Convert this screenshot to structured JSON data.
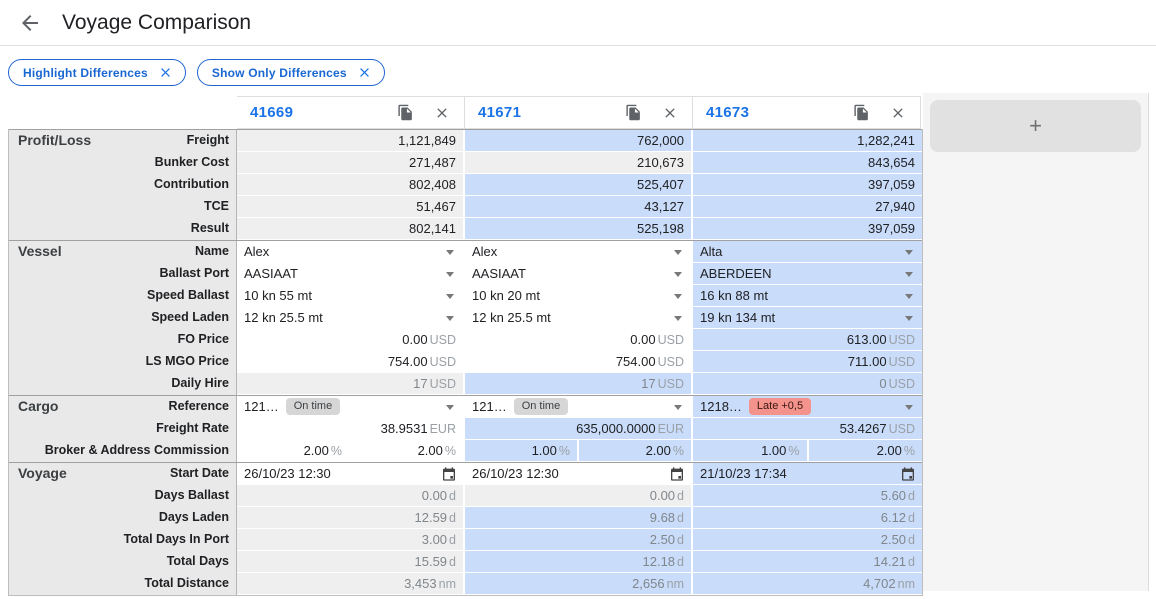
{
  "header": {
    "title": "Voyage Comparison"
  },
  "filters": [
    {
      "label": "Highlight Differences"
    },
    {
      "label": "Show Only Differences"
    }
  ],
  "columns": [
    {
      "id": "41669"
    },
    {
      "id": "41671"
    },
    {
      "id": "41673"
    }
  ],
  "add_column_label": "+",
  "colors": {
    "accent": "#1a73e8",
    "diff_highlight": "#c9dcfa",
    "readonly_bg": "#efefef",
    "label_column_bg": "#e9e9e9",
    "late_badge": "#f4938b",
    "ontime_badge": "#d6d6d6"
  },
  "sections": [
    {
      "name": "Profit/Loss",
      "rows": [
        {
          "label": "Freight",
          "type": "computed",
          "cells": [
            {
              "v": "1,121,849",
              "bg": "g"
            },
            {
              "v": "762,000",
              "bg": "d"
            },
            {
              "v": "1,282,241",
              "bg": "d"
            }
          ]
        },
        {
          "label": "Bunker Cost",
          "type": "computed",
          "cells": [
            {
              "v": "271,487",
              "bg": "g"
            },
            {
              "v": "210,673",
              "bg": "g"
            },
            {
              "v": "843,654",
              "bg": "d"
            }
          ]
        },
        {
          "label": "Contribution",
          "type": "computed",
          "cells": [
            {
              "v": "802,408",
              "bg": "g"
            },
            {
              "v": "525,407",
              "bg": "d"
            },
            {
              "v": "397,059",
              "bg": "d"
            }
          ]
        },
        {
          "label": "TCE",
          "type": "computed",
          "cells": [
            {
              "v": "51,467",
              "bg": "g"
            },
            {
              "v": "43,127",
              "bg": "d"
            },
            {
              "v": "27,940",
              "bg": "d"
            }
          ]
        },
        {
          "label": "Result",
          "type": "computed",
          "cells": [
            {
              "v": "802,141",
              "bg": "g"
            },
            {
              "v": "525,198",
              "bg": "d"
            },
            {
              "v": "397,059",
              "bg": "d"
            }
          ]
        }
      ]
    },
    {
      "name": "Vessel",
      "rows": [
        {
          "label": "Name",
          "type": "dd",
          "cells": [
            {
              "v": "Alex",
              "bg": "w"
            },
            {
              "v": "Alex",
              "bg": "w"
            },
            {
              "v": "Alta",
              "bg": "d"
            }
          ]
        },
        {
          "label": "Ballast Port",
          "type": "dd",
          "cells": [
            {
              "v": "AASIAAT",
              "bg": "w"
            },
            {
              "v": "AASIAAT",
              "bg": "w"
            },
            {
              "v": "ABERDEEN",
              "bg": "d"
            }
          ]
        },
        {
          "label": "Speed Ballast",
          "type": "dd",
          "cells": [
            {
              "v": "10 kn 55 mt",
              "bg": "w"
            },
            {
              "v": "10 kn 20 mt",
              "bg": "w"
            },
            {
              "v": "16 kn 88 mt",
              "bg": "d"
            }
          ]
        },
        {
          "label": "Speed Laden",
          "type": "dd",
          "cells": [
            {
              "v": "12 kn 25.5 mt",
              "bg": "w"
            },
            {
              "v": "12 kn 25.5 mt",
              "bg": "w"
            },
            {
              "v": "19 kn 134 mt",
              "bg": "d"
            }
          ]
        },
        {
          "label": "FO Price",
          "type": "price",
          "cells": [
            {
              "v": "0.00",
              "u": "USD",
              "bg": "w"
            },
            {
              "v": "0.00",
              "u": "USD",
              "bg": "w"
            },
            {
              "v": "613.00",
              "u": "USD",
              "bg": "d"
            }
          ]
        },
        {
          "label": "LS MGO Price",
          "type": "price",
          "cells": [
            {
              "v": "754.00",
              "u": "USD",
              "bg": "w"
            },
            {
              "v": "754.00",
              "u": "USD",
              "bg": "w"
            },
            {
              "v": "711.00",
              "u": "USD",
              "bg": "d"
            }
          ]
        },
        {
          "label": "Daily Hire",
          "type": "ro",
          "cells": [
            {
              "v": "17",
              "u": "USD",
              "bg": "g"
            },
            {
              "v": "17",
              "u": "USD",
              "bg": "d"
            },
            {
              "v": "0",
              "u": "USD",
              "bg": "d"
            }
          ]
        }
      ]
    },
    {
      "name": "Cargo",
      "rows": [
        {
          "label": "Reference",
          "type": "reference",
          "cells": [
            {
              "v": "121…",
              "badge": "On time",
              "late": false,
              "bg": "w"
            },
            {
              "v": "121…",
              "badge": "On time",
              "late": false,
              "bg": "w"
            },
            {
              "v": "1218…",
              "badge": "Late +0,5",
              "late": true,
              "bg": "d"
            }
          ]
        },
        {
          "label": "Freight Rate",
          "type": "price",
          "cells": [
            {
              "v": "38.9531",
              "u": "EUR",
              "bg": "w"
            },
            {
              "v": "635,000.0000",
              "u": "EUR",
              "bg": "d"
            },
            {
              "v": "53.4267",
              "u": "USD",
              "bg": "d"
            }
          ]
        },
        {
          "label": "Broker & Address Commission",
          "type": "split",
          "cells": [
            {
              "s": [
                "2.00",
                "2.00"
              ],
              "u": "%",
              "bg": "w"
            },
            {
              "s": [
                "1.00",
                "2.00"
              ],
              "u": "%",
              "bg": "d"
            },
            {
              "s": [
                "1.00",
                "2.00"
              ],
              "u": "%",
              "bg": "d"
            }
          ]
        }
      ]
    },
    {
      "name": "Voyage",
      "rows": [
        {
          "label": "Start Date",
          "type": "date",
          "cells": [
            {
              "v": "26/10/23 12:30",
              "bg": "w"
            },
            {
              "v": "26/10/23 12:30",
              "bg": "w"
            },
            {
              "v": "21/10/23 17:34",
              "bg": "d"
            }
          ]
        },
        {
          "label": "Days Ballast",
          "type": "ro",
          "cells": [
            {
              "v": "0.00",
              "u": "d",
              "bg": "g"
            },
            {
              "v": "0.00",
              "u": "d",
              "bg": "g"
            },
            {
              "v": "5.60",
              "u": "d",
              "bg": "d"
            }
          ]
        },
        {
          "label": "Days Laden",
          "type": "ro",
          "cells": [
            {
              "v": "12.59",
              "u": "d",
              "bg": "g"
            },
            {
              "v": "9.68",
              "u": "d",
              "bg": "d"
            },
            {
              "v": "6.12",
              "u": "d",
              "bg": "d"
            }
          ]
        },
        {
          "label": "Total Days In Port",
          "type": "ro",
          "cells": [
            {
              "v": "3.00",
              "u": "d",
              "bg": "g"
            },
            {
              "v": "2.50",
              "u": "d",
              "bg": "d"
            },
            {
              "v": "2.50",
              "u": "d",
              "bg": "d"
            }
          ]
        },
        {
          "label": "Total Days",
          "type": "ro",
          "cells": [
            {
              "v": "15.59",
              "u": "d",
              "bg": "g"
            },
            {
              "v": "12.18",
              "u": "d",
              "bg": "d"
            },
            {
              "v": "14.21",
              "u": "d",
              "bg": "d"
            }
          ]
        },
        {
          "label": "Total Distance",
          "type": "ro",
          "cells": [
            {
              "v": "3,453",
              "u": "nm",
              "bg": "g"
            },
            {
              "v": "2,656",
              "u": "nm",
              "bg": "d"
            },
            {
              "v": "4,702",
              "u": "nm",
              "bg": "d"
            }
          ]
        }
      ]
    }
  ]
}
